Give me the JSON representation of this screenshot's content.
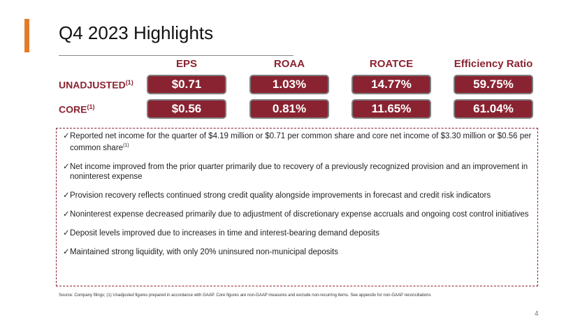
{
  "title": "Q4 2023 Highlights",
  "columns": [
    "EPS",
    "ROAA",
    "ROATCE",
    "Efficiency Ratio"
  ],
  "rows": [
    {
      "label": "UNADJUSTED",
      "note": "(1)",
      "values": [
        "$0.71",
        "1.03%",
        "14.77%",
        "59.75%"
      ]
    },
    {
      "label": "CORE",
      "note": "(1)",
      "values": [
        "$0.56",
        "0.81%",
        "11.65%",
        "61.04%"
      ]
    }
  ],
  "bullets": [
    {
      "text": "Reported net income for the quarter of $4.19 million or $0.71 per common share and core net income of $3.30 million or $0.56 per common share",
      "note": "(1)"
    },
    {
      "text": "Net income improved from the prior quarter primarily due to recovery of a previously recognized provision and an improvement in noninterest expense"
    },
    {
      "text": "Provision recovery reflects continued strong credit quality alongside improvements in forecast and credit risk indicators"
    },
    {
      "text": "Noninterest expense decreased primarily due to adjustment of discretionary expense accruals and ongoing cost control initiatives"
    },
    {
      "text": "Deposit levels improved due to increases in time and interest-bearing demand deposits"
    },
    {
      "text": "Maintained strong liquidity, with only 20% uninsured non-municipal deposits"
    }
  ],
  "check": "✓",
  "footnote": "Source: Company filings; (1) Unadjusted figures prepared in accordance with GAAP. Core figures are non-GAAP measures and exclude non-recurring items. See appendix for non-GAAP reconciliations",
  "page_number": "4",
  "colors": {
    "accent": "#e37b27",
    "brand": "#8a2331"
  }
}
